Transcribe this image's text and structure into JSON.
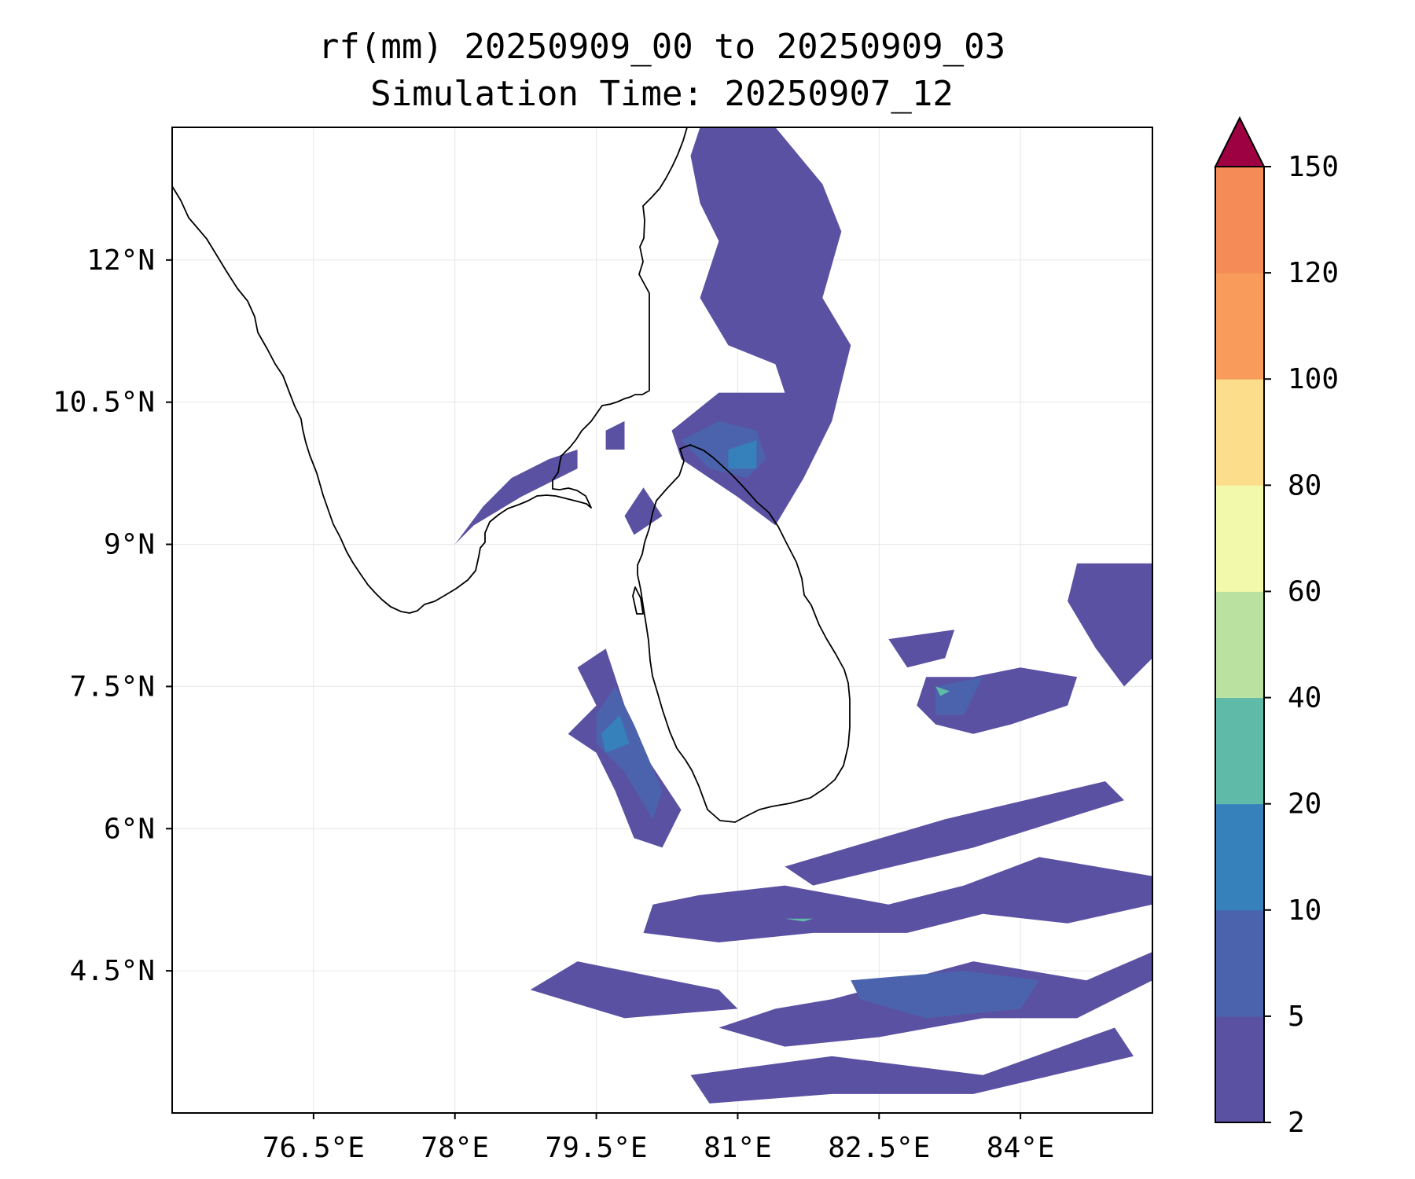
{
  "title_line1": "rf(mm) 20250909_00 to 20250909_03",
  "title_line2": "Simulation Time: 20250907_12",
  "map": {
    "lon_range": [
      75.0,
      85.4
    ],
    "lat_range": [
      3.0,
      13.4
    ],
    "lon_ticks": [
      {
        "value": 76.5,
        "label": "76.5°E"
      },
      {
        "value": 78.0,
        "label": "78°E"
      },
      {
        "value": 79.5,
        "label": "79.5°E"
      },
      {
        "value": 81.0,
        "label": "81°E"
      },
      {
        "value": 82.5,
        "label": "82.5°E"
      },
      {
        "value": 84.0,
        "label": "84°E"
      }
    ],
    "lat_ticks": [
      {
        "value": 12.0,
        "label": "12°N"
      },
      {
        "value": 10.5,
        "label": "10.5°N"
      },
      {
        "value": 9.0,
        "label": "9°N"
      },
      {
        "value": 7.5,
        "label": "7.5°N"
      },
      {
        "value": 6.0,
        "label": "6°N"
      },
      {
        "value": 4.5,
        "label": "4.5°N"
      }
    ],
    "grid": true
  },
  "colorbar": {
    "levels": [
      "2",
      "5",
      "10",
      "20",
      "40",
      "60",
      "80",
      "100",
      "120",
      "150"
    ],
    "colors": [
      "#5b51a3",
      "#4b63ad",
      "#3680bb",
      "#5fbba8",
      "#bbe1a0",
      "#f2f9aa",
      "#fbdd8c",
      "#f99b5a",
      "#f58b56",
      "#d53e4f"
    ],
    "colors_note_ignore": "",
    "extend_max_color": "#9e0142",
    "extend": "max"
  },
  "chart_data": {
    "type": "heatmap",
    "title": "rf(mm) 20250909_00 to 20250909_03",
    "subtitle": "Simulation Time: 20250907_12",
    "xlim": [
      75.0,
      85.4
    ],
    "ylim": [
      3.0,
      13.4
    ],
    "legend": "right",
    "rain_areas": [
      {
        "level": 0,
        "points": [
          [
            80.6,
            13.4
          ],
          [
            81.4,
            13.4
          ],
          [
            81.9,
            12.8
          ],
          [
            82.1,
            12.3
          ],
          [
            81.9,
            11.6
          ],
          [
            82.2,
            11.1
          ],
          [
            82.0,
            10.3
          ],
          [
            81.7,
            9.7
          ],
          [
            81.4,
            9.2
          ],
          [
            81.0,
            9.5
          ],
          [
            80.4,
            9.9
          ],
          [
            80.3,
            10.2
          ],
          [
            80.8,
            10.6
          ],
          [
            81.5,
            10.6
          ],
          [
            81.4,
            10.9
          ],
          [
            80.9,
            11.1
          ],
          [
            80.6,
            11.6
          ],
          [
            80.8,
            12.2
          ],
          [
            80.6,
            12.6
          ],
          [
            80.5,
            13.1
          ]
        ]
      },
      {
        "level": 0,
        "points": [
          [
            79.3,
            10.0
          ],
          [
            79.3,
            9.8
          ],
          [
            78.7,
            9.5
          ],
          [
            78.2,
            9.2
          ],
          [
            78.0,
            9.0
          ],
          [
            78.3,
            9.4
          ],
          [
            78.6,
            9.7
          ],
          [
            79.0,
            9.9
          ]
        ]
      },
      {
        "level": 0,
        "points": [
          [
            79.6,
            10.2
          ],
          [
            79.8,
            10.3
          ],
          [
            79.8,
            10.0
          ],
          [
            79.6,
            10.0
          ]
        ]
      },
      {
        "level": 0,
        "points": [
          [
            79.8,
            9.3
          ],
          [
            80.0,
            9.6
          ],
          [
            80.2,
            9.3
          ],
          [
            79.9,
            9.1
          ]
        ]
      },
      {
        "level": 0,
        "points": [
          [
            79.3,
            7.7
          ],
          [
            79.6,
            7.9
          ],
          [
            79.8,
            7.3
          ],
          [
            80.0,
            6.8
          ],
          [
            80.4,
            6.2
          ],
          [
            80.2,
            5.8
          ],
          [
            79.9,
            5.9
          ],
          [
            79.7,
            6.4
          ],
          [
            79.5,
            6.8
          ],
          [
            79.2,
            7.0
          ],
          [
            79.5,
            7.3
          ]
        ]
      },
      {
        "level": 0,
        "points": [
          [
            80.6,
            5.3
          ],
          [
            81.5,
            5.4
          ],
          [
            82.6,
            5.2
          ],
          [
            83.4,
            5.4
          ],
          [
            84.2,
            5.7
          ],
          [
            85.4,
            5.5
          ],
          [
            85.4,
            5.2
          ],
          [
            84.5,
            5.0
          ],
          [
            83.6,
            5.1
          ],
          [
            82.8,
            4.9
          ],
          [
            81.8,
            4.9
          ],
          [
            80.8,
            4.8
          ],
          [
            80.0,
            4.9
          ],
          [
            80.1,
            5.2
          ]
        ]
      },
      {
        "level": 0,
        "points": [
          [
            82.0,
            4.2
          ],
          [
            83.5,
            4.6
          ],
          [
            84.7,
            4.4
          ],
          [
            85.4,
            4.7
          ],
          [
            85.4,
            4.4
          ],
          [
            84.6,
            4.0
          ],
          [
            83.6,
            4.0
          ],
          [
            82.5,
            3.8
          ],
          [
            81.5,
            3.7
          ],
          [
            80.8,
            3.9
          ],
          [
            81.4,
            4.1
          ]
        ]
      },
      {
        "level": 0,
        "points": [
          [
            79.3,
            4.6
          ],
          [
            80.8,
            4.3
          ],
          [
            81.0,
            4.1
          ],
          [
            79.8,
            4.0
          ],
          [
            78.8,
            4.3
          ]
        ]
      },
      {
        "level": 0,
        "points": [
          [
            83.0,
            7.6
          ],
          [
            83.5,
            7.6
          ],
          [
            84.0,
            7.7
          ],
          [
            84.6,
            7.6
          ],
          [
            84.5,
            7.3
          ],
          [
            83.9,
            7.1
          ],
          [
            83.5,
            7.0
          ],
          [
            83.1,
            7.1
          ],
          [
            82.9,
            7.3
          ]
        ]
      },
      {
        "level": 0,
        "points": [
          [
            84.6,
            8.8
          ],
          [
            85.4,
            8.8
          ],
          [
            85.4,
            7.8
          ],
          [
            85.1,
            7.5
          ],
          [
            84.8,
            7.9
          ],
          [
            84.5,
            8.4
          ]
        ]
      },
      {
        "level": 0,
        "points": [
          [
            82.6,
            8.0
          ],
          [
            83.3,
            8.1
          ],
          [
            83.2,
            7.8
          ],
          [
            82.8,
            7.7
          ]
        ]
      },
      {
        "level": 0,
        "points": [
          [
            81.5,
            5.6
          ],
          [
            83.2,
            6.1
          ],
          [
            84.9,
            6.5
          ],
          [
            85.1,
            6.3
          ],
          [
            83.5,
            5.8
          ],
          [
            81.8,
            5.4
          ]
        ]
      },
      {
        "level": 0,
        "points": [
          [
            80.5,
            3.4
          ],
          [
            82.0,
            3.6
          ],
          [
            83.6,
            3.4
          ],
          [
            85.0,
            3.9
          ],
          [
            85.2,
            3.6
          ],
          [
            83.5,
            3.2
          ],
          [
            82.0,
            3.2
          ],
          [
            80.7,
            3.1
          ]
        ]
      },
      {
        "level": 1,
        "points": [
          [
            80.4,
            10.1
          ],
          [
            80.8,
            10.3
          ],
          [
            81.2,
            10.2
          ],
          [
            81.3,
            9.9
          ],
          [
            81.1,
            9.7
          ],
          [
            80.7,
            9.8
          ]
        ]
      },
      {
        "level": 1,
        "points": [
          [
            79.5,
            7.2
          ],
          [
            79.7,
            7.5
          ],
          [
            79.9,
            7.1
          ],
          [
            80.2,
            6.4
          ],
          [
            80.1,
            6.1
          ],
          [
            79.8,
            6.6
          ],
          [
            79.5,
            6.9
          ]
        ]
      },
      {
        "level": 1,
        "points": [
          [
            82.2,
            4.4
          ],
          [
            83.4,
            4.5
          ],
          [
            84.2,
            4.4
          ],
          [
            84.0,
            4.1
          ],
          [
            83.0,
            4.0
          ],
          [
            82.3,
            4.2
          ]
        ]
      },
      {
        "level": 1,
        "points": [
          [
            83.1,
            7.5
          ],
          [
            83.6,
            7.6
          ],
          [
            83.4,
            7.2
          ],
          [
            83.1,
            7.2
          ]
        ]
      },
      {
        "level": 2,
        "points": [
          [
            80.9,
            10.0
          ],
          [
            81.2,
            10.1
          ],
          [
            81.2,
            9.8
          ],
          [
            80.9,
            9.8
          ]
        ]
      },
      {
        "level": 2,
        "points": [
          [
            79.55,
            7.0
          ],
          [
            79.75,
            7.2
          ],
          [
            79.85,
            6.9
          ],
          [
            79.6,
            6.8
          ]
        ]
      },
      {
        "level": 3,
        "points": [
          [
            83.1,
            7.5
          ],
          [
            83.25,
            7.45
          ],
          [
            83.15,
            7.4
          ]
        ]
      },
      {
        "level": 3,
        "points": [
          [
            81.5,
            5.05
          ],
          [
            81.8,
            5.05
          ],
          [
            81.7,
            5.02
          ]
        ]
      }
    ]
  }
}
